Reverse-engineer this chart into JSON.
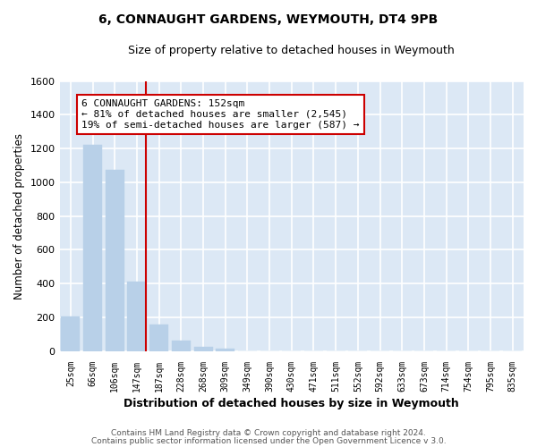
{
  "title": "6, CONNAUGHT GARDENS, WEYMOUTH, DT4 9PB",
  "subtitle": "Size of property relative to detached houses in Weymouth",
  "xlabel": "Distribution of detached houses by size in Weymouth",
  "ylabel": "Number of detached properties",
  "footer_line1": "Contains HM Land Registry data © Crown copyright and database right 2024.",
  "footer_line2": "Contains public sector information licensed under the Open Government Licence v 3.0.",
  "bar_labels": [
    "25sqm",
    "66sqm",
    "106sqm",
    "147sqm",
    "187sqm",
    "228sqm",
    "268sqm",
    "309sqm",
    "349sqm",
    "390sqm",
    "430sqm",
    "471sqm",
    "511sqm",
    "552sqm",
    "592sqm",
    "633sqm",
    "673sqm",
    "714sqm",
    "754sqm",
    "795sqm",
    "835sqm"
  ],
  "bar_values": [
    205,
    1220,
    1075,
    410,
    155,
    60,
    25,
    15,
    0,
    0,
    0,
    0,
    0,
    0,
    0,
    0,
    0,
    0,
    0,
    0,
    0
  ],
  "vline_index": 3,
  "bar_color": "#b8d0e8",
  "vline_color": "#cc0000",
  "ylim": [
    0,
    1600
  ],
  "yticks": [
    0,
    200,
    400,
    600,
    800,
    1000,
    1200,
    1400,
    1600
  ],
  "annotation_title": "6 CONNAUGHT GARDENS: 152sqm",
  "annotation_line1": "← 81% of detached houses are smaller (2,545)",
  "annotation_line2": "19% of semi-detached houses are larger (587) →",
  "annotation_box_facecolor": "#ffffff",
  "annotation_box_edgecolor": "#cc0000",
  "bg_color": "#ffffff",
  "plot_bg_color": "#dce8f5",
  "grid_color": "#ffffff"
}
